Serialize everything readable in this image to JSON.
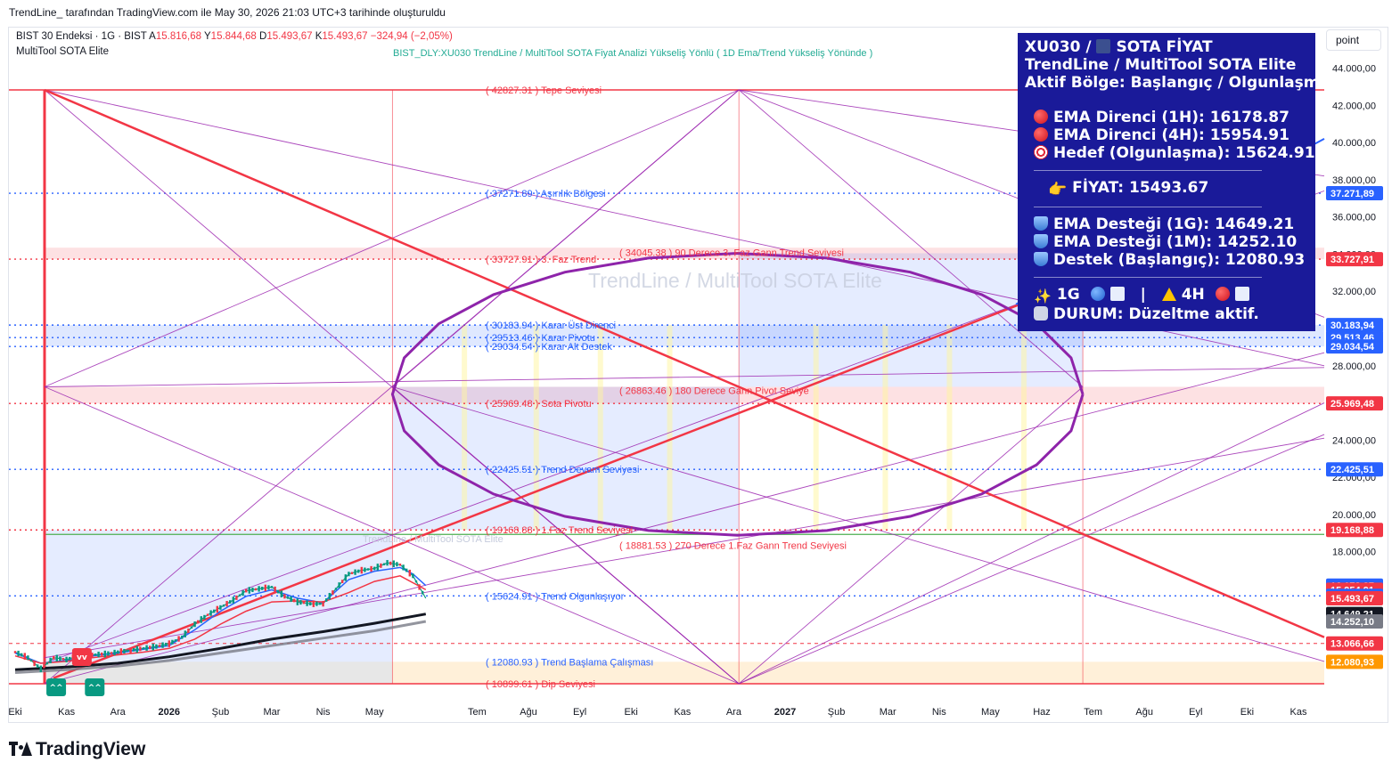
{
  "header": {
    "credit": "TrendLine_ tarafından TradingView.com ile May 30, 2026 21:03 UTC+3 tarihinde oluşturuldu"
  },
  "symbol": {
    "name": "BIST 30 Endeksi · 1G · BIST",
    "ohlc": [
      {
        "k": "A",
        "v": "15.816,68"
      },
      {
        "k": "Y",
        "v": "15.844,68"
      },
      {
        "k": "D",
        "v": "15.493,67"
      },
      {
        "k": "K",
        "v": "15.493,67"
      }
    ],
    "change": "−324,94 (−2,05%)"
  },
  "indicator": {
    "name": "MultiTool SOTA Elite",
    "banner": "BIST_DLY:XU030 TrendLine / MultiTool  SOTA Fiyat Analizi Yükseliş Yönlü ( 1D  Ema/Trend Yükseliş Yönünde )"
  },
  "scale_mode": "point",
  "watermark": {
    "main": "TrendLine / MultiTool SOTA Elite",
    "small": "TrendLine / MultiTool SOTA Elite"
  },
  "info_panel": {
    "lines": [
      {
        "icon": "chart-icon",
        "pre": "XU030 / ",
        "text": "SOTA FİYAT"
      },
      {
        "text": "TrendLine / MultiTool SOTA Elite"
      },
      {
        "text": "Aktif Bölge: Başlangıç / Olgunlaşma"
      }
    ],
    "resistances": [
      {
        "icon": "red-circle-icon",
        "text": "EMA Direnci (1H): 16178.87"
      },
      {
        "icon": "red-circle-icon",
        "text": "EMA Direnci (4H): 15954.91"
      },
      {
        "icon": "target-icon",
        "text": "Hedef (Olgunlaşma): 15624.91"
      }
    ],
    "price": {
      "icon": "pointing-hand-icon",
      "text": "FİYAT: 15493.67"
    },
    "supports": [
      {
        "icon": "shield-icon",
        "text": "EMA Desteği (1G): 14649.21"
      },
      {
        "icon": "shield-icon",
        "text": "EMA Desteği (1M): 14252.10"
      },
      {
        "icon": "shield-icon",
        "text": "Destek (Başlangıç): 12080.93"
      }
    ],
    "status_tf": {
      "tf1": "1G",
      "sep": "|",
      "tf2": "4H"
    },
    "status": "DURUM: Düzeltme aktif."
  },
  "logo": {
    "text": "TradingView"
  },
  "chart_data": {
    "type": "line",
    "title": "",
    "y_scale": "linear",
    "ylim": [
      10400,
      45200
    ],
    "y_ticks": [
      {
        "v": 44000,
        "label": "44.000,00"
      },
      {
        "v": 42000,
        "label": "42.000,00"
      },
      {
        "v": 40000,
        "label": "40.000,00"
      },
      {
        "v": 38000,
        "label": "38.000,00"
      },
      {
        "v": 36000,
        "label": "36.000,00"
      },
      {
        "v": 34000,
        "label": "34.000,00"
      },
      {
        "v": 32000,
        "label": "32.000,00"
      },
      {
        "v": 30000,
        "label": "30.000,00"
      },
      {
        "v": 28000,
        "label": "28.000,00"
      },
      {
        "v": 26000,
        "label": "26.000,00"
      },
      {
        "v": 24000,
        "label": "24.000,00"
      },
      {
        "v": 22000,
        "label": "22.000,00"
      },
      {
        "v": 20000,
        "label": "20.000,00"
      },
      {
        "v": 18000,
        "label": "18.000,00"
      }
    ],
    "x_labels": [
      {
        "m": 0,
        "label": "Eki"
      },
      {
        "m": 1,
        "label": "Kas"
      },
      {
        "m": 2,
        "label": "Ara"
      },
      {
        "m": 3,
        "label": "2026",
        "bold": true
      },
      {
        "m": 4,
        "label": "Şub"
      },
      {
        "m": 5,
        "label": "Mar"
      },
      {
        "m": 6,
        "label": "Nis"
      },
      {
        "m": 7,
        "label": "May"
      },
      {
        "m": 9,
        "label": "Tem"
      },
      {
        "m": 10,
        "label": "Ağu"
      },
      {
        "m": 11,
        "label": "Eyl"
      },
      {
        "m": 12,
        "label": "Eki"
      },
      {
        "m": 13,
        "label": "Kas"
      },
      {
        "m": 14,
        "label": "Ara"
      },
      {
        "m": 15,
        "label": "2027",
        "bold": true
      },
      {
        "m": 16,
        "label": "Şub"
      },
      {
        "m": 17,
        "label": "Mar"
      },
      {
        "m": 18,
        "label": "Nis"
      },
      {
        "m": 19,
        "label": "May"
      },
      {
        "m": 20,
        "label": "Haz"
      },
      {
        "m": 21,
        "label": "Tem"
      },
      {
        "m": 22,
        "label": "Ağu"
      },
      {
        "m": 23,
        "label": "Eyl"
      },
      {
        "m": 24,
        "label": "Eki"
      },
      {
        "m": 25,
        "label": "Kas"
      }
    ],
    "levels": [
      {
        "v": 42827.31,
        "label": "( 42827.31 ) Tepe Seviyesi",
        "color": "#f23645",
        "style": "solid"
      },
      {
        "v": 37271.89,
        "label": "( 37271.89 ) Aşırılık Bölgesi",
        "color": "#2962ff",
        "style": "dotted"
      },
      {
        "v": 33727.91,
        "label": "( 33727.91 ) 3. Faz Trend",
        "color": "#f23645",
        "style": "dotted"
      },
      {
        "v": 30183.94,
        "label": "( 30183.94 ) Karar Üst Direnci",
        "color": "#2962ff",
        "style": "dotted"
      },
      {
        "v": 29513.46,
        "label": "( 29513.46 ) Karar Pivotu",
        "color": "#2962ff",
        "style": "dotted"
      },
      {
        "v": 29034.54,
        "label": "( 29034.54 ) Karar Alt Destek",
        "color": "#2962ff",
        "style": "dotted"
      },
      {
        "v": 25969.48,
        "label": "( 25969.48 ) Sota Pivotu",
        "color": "#f23645",
        "style": "dotted"
      },
      {
        "v": 22425.51,
        "label": "( 22425.51 ) Trend Devam Seviyesi",
        "color": "#2962ff",
        "style": "dotted"
      },
      {
        "v": 19168.88,
        "label": "( 19168.88 ) 1.Faz Trend Seviyesi",
        "color": "#f23645",
        "style": "dotted"
      },
      {
        "v": 15624.91,
        "label": "( 15624.91 ) Trend Olgunlaşıyor",
        "color": "#2962ff",
        "style": "dotted"
      },
      {
        "v": 12080.93,
        "label": "( 12080.93 ) Trend Başlama Çalışması",
        "color": "#2962ff",
        "style": "none"
      },
      {
        "v": 10899.61,
        "label": "( 10899.61 ) Dip Seviyesi",
        "color": "#f23645",
        "style": "solid"
      }
    ],
    "gann_levels": [
      {
        "v": 34045.38,
        "label": "( 34045.38 ) 90 Derece 3. Faz Gann Trend Seviyesi"
      },
      {
        "v": 26863.46,
        "label": "( 26863.46 ) 180 Derece Gann Pivot Seviye"
      },
      {
        "v": 18881.53,
        "label": "( 18881.53 ) 270 Derece 1.Faz Gann Trend Seviyesi"
      }
    ],
    "price_tags": [
      {
        "v": 37271.89,
        "label": "37.271,89",
        "bg": "#2962ff"
      },
      {
        "v": 33727.91,
        "label": "33.727,91",
        "bg": "#f23645"
      },
      {
        "v": 30183.94,
        "label": "30.183,94",
        "bg": "#2962ff"
      },
      {
        "v": 29513.46,
        "label": "29.513,46",
        "bg": "#2962ff"
      },
      {
        "v": 29034.54,
        "label": "29.034,54",
        "bg": "#2962ff"
      },
      {
        "v": 25969.48,
        "label": "25.969,48",
        "bg": "#f23645"
      },
      {
        "v": 22425.51,
        "label": "22.425,51",
        "bg": "#2962ff"
      },
      {
        "v": 19168.88,
        "label": "19.168,88",
        "bg": "#f23645"
      },
      {
        "v": 16178.87,
        "label": "16.178,87",
        "bg": "#2962ff"
      },
      {
        "v": 15954.91,
        "label": "15.954,91",
        "bg": "#f23645"
      },
      {
        "v": 15624.91,
        "label": "15.624,91",
        "bg": "#2962ff"
      },
      {
        "v": 15493.67,
        "label": "15.493,67",
        "bg": "#f23645"
      },
      {
        "v": 14649.21,
        "label": "14.649,21",
        "bg": "#131722"
      },
      {
        "v": 14252.1,
        "label": "14.252,10",
        "bg": "#787b86"
      },
      {
        "v": 13066.66,
        "label": "13.066,66",
        "bg": "#f23645"
      },
      {
        "v": 12080.93,
        "label": "12.080,93",
        "bg": "#ff9800"
      }
    ],
    "zones": [
      {
        "from": 33727.91,
        "to": 34345.0,
        "color": "#f23645"
      },
      {
        "from": 29034.54,
        "to": 30183.94,
        "color": "#2962ff"
      },
      {
        "from": 25969.48,
        "to": 26863.46,
        "color": "#f23645"
      },
      {
        "from": 10899.61,
        "to": 12080.93,
        "color": "#ff9800"
      }
    ],
    "markers": [
      {
        "m": 1.3,
        "type": "sell",
        "label": "vv"
      },
      {
        "m": 0.8,
        "type": "buy",
        "label": "^^"
      },
      {
        "m": 1.55,
        "type": "buy",
        "label": "^^"
      }
    ],
    "series": [
      {
        "name": "Close",
        "color": "#089981",
        "x": [
          0.0,
          0.25,
          0.5,
          0.75,
          1.0,
          1.25,
          1.5,
          1.75,
          2.0,
          2.25,
          2.5,
          2.75,
          3.0,
          3.25,
          3.5,
          3.75,
          4.0,
          4.25,
          4.5,
          4.75,
          5.0,
          5.25,
          5.5,
          5.75,
          6.0,
          6.25,
          6.5,
          6.75,
          7.0,
          7.25,
          7.5,
          7.75,
          8.0
        ],
        "y": [
          12600,
          12300,
          11700,
          12300,
          12200,
          12400,
          12450,
          12500,
          12600,
          12700,
          12800,
          12900,
          13050,
          13400,
          14100,
          14600,
          15000,
          15400,
          15900,
          16000,
          16100,
          15600,
          15300,
          15200,
          15200,
          16000,
          16800,
          17000,
          17100,
          17400,
          17300,
          16700,
          15494
        ]
      },
      {
        "name": "EMA (1H)",
        "color": "#2962ff",
        "x": [
          0.0,
          0.5,
          1.0,
          1.5,
          2.0,
          2.5,
          3.0,
          3.5,
          4.0,
          4.5,
          5.0,
          5.5,
          6.0,
          6.5,
          7.0,
          7.5,
          7.75,
          8.0
        ],
        "y": [
          12550,
          12000,
          12150,
          12400,
          12550,
          12750,
          12950,
          13800,
          14800,
          15600,
          15950,
          15500,
          15250,
          16500,
          16950,
          17150,
          16800,
          16179
        ]
      },
      {
        "name": "EMA (4H)",
        "color": "#f23645",
        "x": [
          0.0,
          0.5,
          1.0,
          1.5,
          2.0,
          2.5,
          3.0,
          3.5,
          4.0,
          4.5,
          5.0,
          5.5,
          6.0,
          6.5,
          7.0,
          7.5,
          8.0
        ],
        "y": [
          12400,
          12000,
          12100,
          12300,
          12450,
          12600,
          12800,
          13300,
          14100,
          14800,
          15300,
          15350,
          15300,
          15800,
          16400,
          16700,
          15955
        ]
      },
      {
        "name": "EMA (1G)",
        "color": "#131722",
        "x": [
          0.0,
          1.0,
          2.0,
          3.0,
          4.0,
          5.0,
          6.0,
          7.0,
          8.0
        ],
        "y": [
          11650,
          11800,
          12000,
          12350,
          12800,
          13300,
          13700,
          14150,
          14649
        ]
      },
      {
        "name": "EMA (1M)",
        "color": "#787b86",
        "x": [
          0.0,
          1.0,
          2.0,
          3.0,
          4.0,
          5.0,
          6.0,
          7.0,
          8.0
        ],
        "y": [
          11500,
          11650,
          11850,
          12150,
          12550,
          12950,
          13350,
          13750,
          14252
        ]
      }
    ]
  }
}
